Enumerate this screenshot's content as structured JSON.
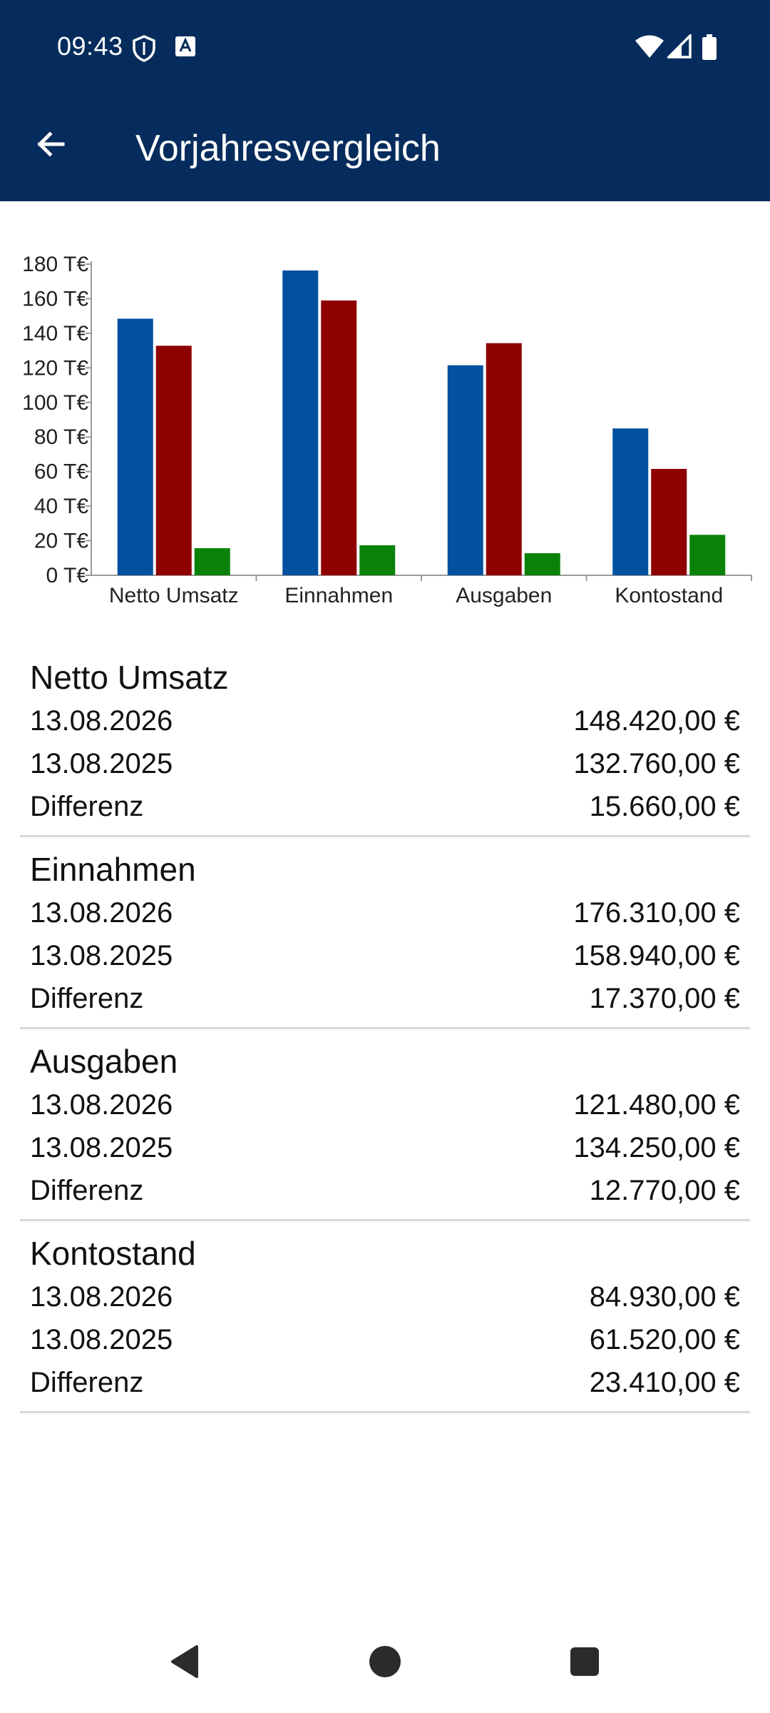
{
  "status": {
    "time": "09:43",
    "icons": [
      "shield-icon",
      "font-icon",
      "wifi-icon",
      "signal-icon",
      "battery-icon"
    ]
  },
  "appbar": {
    "title": "Vorjahresvergleich",
    "back_icon": "arrow-left-icon"
  },
  "colors": {
    "header": "#052c5c",
    "current_year": "#0250a0",
    "previous_year": "#8f0000",
    "difference": "#0a820a"
  },
  "chart_data": {
    "type": "bar",
    "categories": [
      "Netto Umsatz",
      "Einnahmen",
      "Ausgaben",
      "Kontostand"
    ],
    "series": [
      {
        "values": [
          148.42,
          176.31,
          121.48,
          84.93
        ],
        "color": "#0250a0"
      },
      {
        "values": [
          132.76,
          158.94,
          134.25,
          61.52
        ],
        "color": "#8f0000"
      },
      {
        "values": [
          15.66,
          17.37,
          12.77,
          23.41
        ],
        "color": "#0a820a"
      }
    ],
    "yticks": [
      "0 T€",
      "20 T€",
      "40 T€",
      "60 T€",
      "80 T€",
      "100 T€",
      "120 T€",
      "140 T€",
      "160 T€",
      "180 T€"
    ],
    "ylim": [
      0,
      180
    ],
    "grid": false
  },
  "sections": [
    {
      "title": "Netto Umsatz",
      "rows": [
        {
          "label": "13.08.2026",
          "value": "148.420,00 €"
        },
        {
          "label": "13.08.2025",
          "value": "132.760,00 €"
        },
        {
          "label": "Differenz",
          "value": "15.660,00 €"
        }
      ]
    },
    {
      "title": "Einnahmen",
      "rows": [
        {
          "label": "13.08.2026",
          "value": "176.310,00 €"
        },
        {
          "label": "13.08.2025",
          "value": "158.940,00 €"
        },
        {
          "label": "Differenz",
          "value": "17.370,00 €"
        }
      ]
    },
    {
      "title": "Ausgaben",
      "rows": [
        {
          "label": "13.08.2026",
          "value": "121.480,00 €"
        },
        {
          "label": "13.08.2025",
          "value": "134.250,00 €"
        },
        {
          "label": "Differenz",
          "value": "12.770,00 €"
        }
      ]
    },
    {
      "title": "Kontostand",
      "rows": [
        {
          "label": "13.08.2026",
          "value": "84.930,00 €"
        },
        {
          "label": "13.08.2025",
          "value": "61.520,00 €"
        },
        {
          "label": "Differenz",
          "value": "23.410,00 €"
        }
      ]
    }
  ],
  "navbar": {
    "icons": [
      "nav-back-icon",
      "nav-home-icon",
      "nav-recents-icon"
    ]
  }
}
